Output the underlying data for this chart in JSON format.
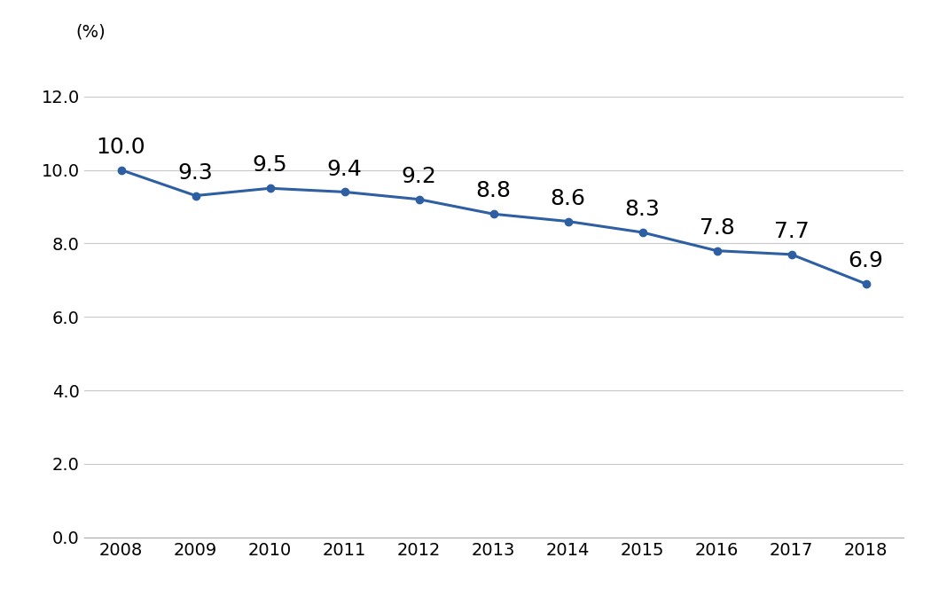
{
  "years": [
    2008,
    2009,
    2010,
    2011,
    2012,
    2013,
    2014,
    2015,
    2016,
    2017,
    2018
  ],
  "values": [
    10.0,
    9.3,
    9.5,
    9.4,
    9.2,
    8.8,
    8.6,
    8.3,
    7.8,
    7.7,
    6.9
  ],
  "line_color": "#2E5FA3",
  "marker_color": "#2E5FA3",
  "ylabel_unit": "(%)",
  "ylim": [
    0.0,
    13.0
  ],
  "yticks": [
    0.0,
    2.0,
    4.0,
    6.0,
    8.0,
    10.0,
    12.0
  ],
  "xlim": [
    2007.5,
    2018.5
  ],
  "grid_color": "#C8C8C8",
  "background_color": "#FFFFFF",
  "label_fontsize": 18,
  "tick_fontsize": 14,
  "unit_fontsize": 14,
  "line_width": 2.2,
  "marker_size": 6
}
